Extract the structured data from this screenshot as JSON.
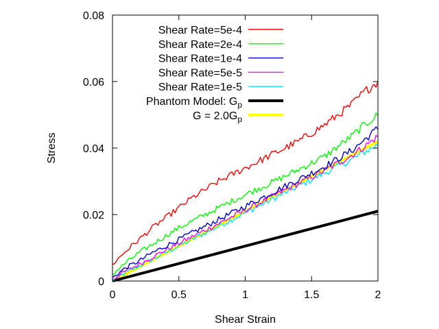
{
  "chart_data": {
    "type": "line",
    "xlabel": "Shear Strain",
    "ylabel": "Stress",
    "xlim": [
      0,
      2
    ],
    "ylim": [
      0,
      0.08
    ],
    "xticks": [
      {
        "value": 0,
        "label": "0"
      },
      {
        "value": 0.5,
        "label": "0.5"
      },
      {
        "value": 1,
        "label": "1"
      },
      {
        "value": 1.5,
        "label": "1.5"
      },
      {
        "value": 2,
        "label": "2"
      }
    ],
    "yticks": [
      {
        "value": 0,
        "label": "0"
      },
      {
        "value": 0.02,
        "label": "0.02"
      },
      {
        "value": 0.04,
        "label": "0.04"
      },
      {
        "value": 0.06,
        "label": "0.06"
      },
      {
        "value": 0.08,
        "label": "0.08"
      }
    ],
    "grid": false,
    "legend_position": "top-left",
    "series": [
      {
        "name": "Shear Rate=5e-4",
        "color": "#ff0000",
        "noisy": true,
        "x": [
          0,
          0.1,
          0.2,
          0.3,
          0.4,
          0.5,
          0.6,
          0.7,
          0.8,
          0.9,
          1.0,
          1.1,
          1.2,
          1.3,
          1.4,
          1.5,
          1.6,
          1.7,
          1.8,
          1.9,
          2.0
        ],
        "y": [
          0.005,
          0.009,
          0.0125,
          0.016,
          0.019,
          0.022,
          0.025,
          0.0275,
          0.03,
          0.032,
          0.034,
          0.036,
          0.038,
          0.04,
          0.042,
          0.0445,
          0.047,
          0.05,
          0.053,
          0.057,
          0.06
        ]
      },
      {
        "name": "Shear Rate=2e-4",
        "color": "#00ff00",
        "noisy": true,
        "x": [
          0,
          0.1,
          0.2,
          0.3,
          0.4,
          0.5,
          0.6,
          0.7,
          0.8,
          0.9,
          1.0,
          1.1,
          1.2,
          1.3,
          1.4,
          1.5,
          1.6,
          1.7,
          1.8,
          1.9,
          2.0
        ],
        "y": [
          0.002,
          0.0055,
          0.0085,
          0.011,
          0.0135,
          0.016,
          0.018,
          0.02,
          0.022,
          0.024,
          0.026,
          0.0278,
          0.0296,
          0.0315,
          0.0335,
          0.0355,
          0.0375,
          0.0405,
          0.0435,
          0.047,
          0.05
        ]
      },
      {
        "name": "Shear Rate=1e-4",
        "color": "#0000cc",
        "noisy": true,
        "x": [
          0,
          0.1,
          0.2,
          0.3,
          0.4,
          0.5,
          0.6,
          0.7,
          0.8,
          0.9,
          1.0,
          1.1,
          1.2,
          1.3,
          1.4,
          1.5,
          1.6,
          1.7,
          1.8,
          1.9,
          2.0
        ],
        "y": [
          0.001,
          0.004,
          0.006,
          0.0085,
          0.0105,
          0.0125,
          0.0145,
          0.0165,
          0.0185,
          0.0205,
          0.0225,
          0.0245,
          0.0265,
          0.0285,
          0.0305,
          0.0325,
          0.0345,
          0.0368,
          0.0392,
          0.0425,
          0.046
        ]
      },
      {
        "name": "Shear Rate=5e-5",
        "color": "#ff00ff",
        "noisy": true,
        "x": [
          0,
          0.1,
          0.2,
          0.3,
          0.4,
          0.5,
          0.6,
          0.7,
          0.8,
          0.9,
          1.0,
          1.1,
          1.2,
          1.3,
          1.4,
          1.5,
          1.6,
          1.7,
          1.8,
          1.9,
          2.0
        ],
        "y": [
          0.0005,
          0.003,
          0.005,
          0.0072,
          0.0093,
          0.0113,
          0.0133,
          0.0153,
          0.0173,
          0.0193,
          0.0213,
          0.0233,
          0.0253,
          0.0273,
          0.0293,
          0.0313,
          0.0333,
          0.0355,
          0.0378,
          0.0405,
          0.0435
        ]
      },
      {
        "name": "Shear Rate=1e-5",
        "color": "#00e5ff",
        "noisy": true,
        "x": [
          0,
          0.1,
          0.2,
          0.3,
          0.4,
          0.5,
          0.6,
          0.7,
          0.8,
          0.9,
          1.0,
          1.1,
          1.2,
          1.3,
          1.4,
          1.5,
          1.6,
          1.7,
          1.8,
          1.9,
          2.0
        ],
        "y": [
          0.0003,
          0.0025,
          0.0045,
          0.0065,
          0.0085,
          0.0105,
          0.0125,
          0.0145,
          0.0165,
          0.0185,
          0.0205,
          0.0225,
          0.0245,
          0.0265,
          0.0285,
          0.0305,
          0.0325,
          0.0345,
          0.0365,
          0.0388,
          0.041
        ]
      },
      {
        "name": "Phantom Model: G",
        "name_sub": "p",
        "color": "#000000",
        "noisy": false,
        "x": [
          0,
          2
        ],
        "y": [
          0,
          0.021
        ]
      },
      {
        "name": "G = 2.0G",
        "name_sub": "p",
        "color": "#ffff00",
        "noisy": false,
        "x": [
          0,
          2
        ],
        "y": [
          0,
          0.042
        ]
      }
    ]
  }
}
